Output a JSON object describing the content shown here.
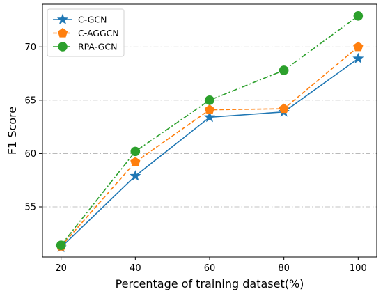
{
  "chart_data": {
    "type": "line",
    "xlabel": "Percentage of training dataset(%)",
    "ylabel": "F1 Score",
    "x": [
      20,
      40,
      60,
      80,
      100
    ],
    "xlim": [
      15,
      105
    ],
    "ylim": [
      50.3,
      74.0
    ],
    "xticks": [
      20,
      40,
      60,
      80,
      100
    ],
    "yticks": [
      55,
      60,
      65,
      70
    ],
    "grid": "horizontal dash-dot",
    "legend_position": "top-left",
    "series": [
      {
        "name": "C-GCN",
        "values": [
          51.2,
          57.9,
          63.4,
          63.9,
          68.9
        ],
        "color": "#1f77b4",
        "marker": "star",
        "line_style": "solid"
      },
      {
        "name": "C-AGGCN",
        "values": [
          51.3,
          59.2,
          64.1,
          64.2,
          70.0
        ],
        "color": "#ff7f0e",
        "marker": "pentagon",
        "line_style": "dashed"
      },
      {
        "name": "RPA-GCN",
        "values": [
          51.4,
          60.2,
          65.0,
          67.8,
          72.9
        ],
        "color": "#2ca02c",
        "marker": "circle",
        "line_style": "dashdot"
      }
    ]
  }
}
